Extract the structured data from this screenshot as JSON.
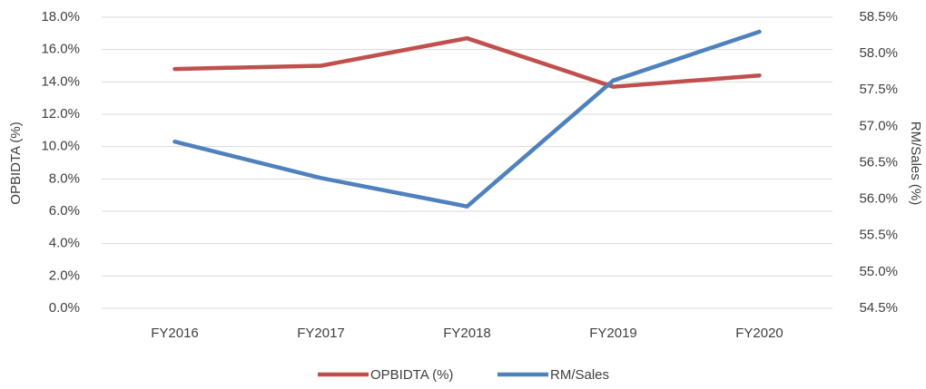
{
  "chart_data": {
    "type": "line",
    "categories": [
      "FY2016",
      "FY2017",
      "FY2018",
      "FY2019",
      "FY2020"
    ],
    "series": [
      {
        "name": "OPBIDTA (%)",
        "color": "#c0504d",
        "values": [
          14.8,
          15.0,
          16.7,
          13.7,
          14.4
        ]
      },
      {
        "name": "RM/Sales",
        "color": "#4f81bd",
        "axis": "y2",
        "values": [
          56.79,
          56.29,
          55.9,
          57.63,
          58.3
        ]
      }
    ],
    "y_label": "OPBIDTA (%)",
    "y2_label": "RM/Sales (%)",
    "ylim": [
      0,
      18
    ],
    "yticks": [
      {
        "value": 0,
        "label": "0.0%"
      },
      {
        "value": 2,
        "label": "2.0%"
      },
      {
        "value": 4,
        "label": "4.0%"
      },
      {
        "value": 6,
        "label": "6.0%"
      },
      {
        "value": 8,
        "label": "8.0%"
      },
      {
        "value": 10,
        "label": "10.0%"
      },
      {
        "value": 12,
        "label": "12.0%"
      },
      {
        "value": 14,
        "label": "14.0%"
      },
      {
        "value": 16,
        "label": "16.0%"
      },
      {
        "value": 18,
        "label": "18.0%"
      }
    ],
    "y2lim": [
      54.5,
      58.5
    ],
    "y2ticks": [
      {
        "value": 54.5,
        "label": "54.5%"
      },
      {
        "value": 55,
        "label": "55.0%"
      },
      {
        "value": 55.5,
        "label": "55.5%"
      },
      {
        "value": 56,
        "label": "56.0%"
      },
      {
        "value": 56.5,
        "label": "56.5%"
      },
      {
        "value": 57,
        "label": "57.0%"
      },
      {
        "value": 57.5,
        "label": "57.5%"
      },
      {
        "value": 58,
        "label": "58.0%"
      },
      {
        "value": 58.5,
        "label": "58.5%"
      }
    ],
    "grid": true,
    "legend": "bottom"
  }
}
